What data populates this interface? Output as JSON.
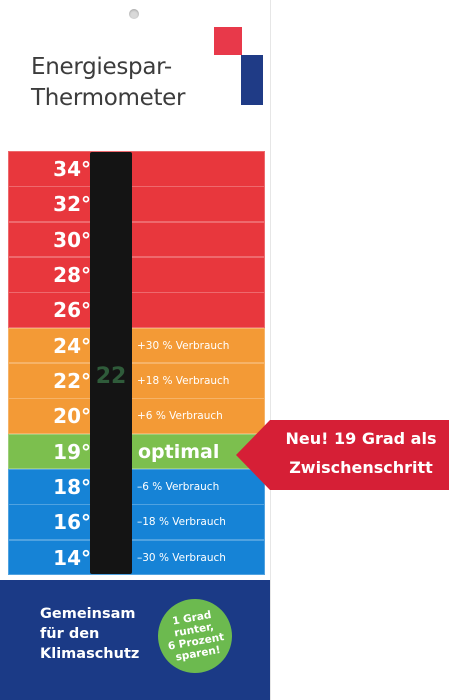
{
  "title": {
    "line1": "Energiespar-",
    "line2": "Thermometer"
  },
  "colors": {
    "red": "#e8373d",
    "orange": "#f39a36",
    "green": "#7cbf4e",
    "blue": "#1683d6",
    "navy": "#1b3a86",
    "callout": "#d61f36",
    "logo_red": "#e8394a",
    "logo_blue": "#1f3b86"
  },
  "thermometer": {
    "current_reading": "22",
    "scale": [
      {
        "temp": "34°",
        "note": "",
        "zone": "red"
      },
      {
        "temp": "32°",
        "note": "",
        "zone": "red"
      },
      {
        "temp": "30°",
        "note": "",
        "zone": "red"
      },
      {
        "temp": "28°",
        "note": "",
        "zone": "red"
      },
      {
        "temp": "26°",
        "note": "",
        "zone": "red"
      },
      {
        "temp": "24°",
        "note": "+30 % Verbrauch",
        "zone": "orange"
      },
      {
        "temp": "22°",
        "note": "+18 % Verbrauch",
        "zone": "orange"
      },
      {
        "temp": "20°",
        "note": "+6 % Verbrauch",
        "zone": "orange"
      },
      {
        "temp": "19°",
        "note": "optimal",
        "zone": "green"
      },
      {
        "temp": "18°",
        "note": "–6 % Verbrauch",
        "zone": "blue"
      },
      {
        "temp": "16°",
        "note": "–18 % Verbrauch",
        "zone": "blue"
      },
      {
        "temp": "14°",
        "note": "–30 % Verbrauch",
        "zone": "blue"
      }
    ]
  },
  "footer": {
    "line1": "Gemeinsam",
    "line2": "für den",
    "line3": "Klimaschutz",
    "badge": [
      "1 Grad",
      "runter,",
      "6 Prozent",
      "sparen!"
    ]
  },
  "callout": {
    "line1": "Neu! 19 Grad als",
    "line2": "Zwischenschritt"
  }
}
